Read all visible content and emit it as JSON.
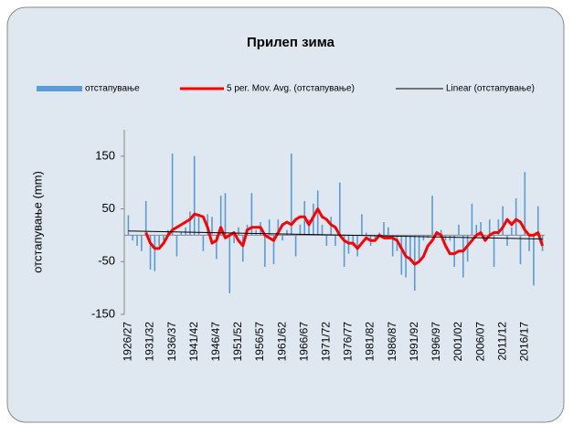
{
  "chart_data": {
    "type": "bar",
    "title": "Прилеп зима",
    "y_label": "отстапување (mm)",
    "categories": [
      "1926/27",
      null,
      null,
      null,
      null,
      "1931/32",
      null,
      null,
      null,
      null,
      "1936/37",
      null,
      null,
      null,
      null,
      "1941/42",
      null,
      null,
      null,
      null,
      "1946/47",
      null,
      null,
      null,
      null,
      "1951/52",
      null,
      null,
      null,
      null,
      "1956/57",
      null,
      null,
      null,
      null,
      "1961/62",
      null,
      null,
      null,
      null,
      "1966/67",
      null,
      null,
      null,
      null,
      "1971/72",
      null,
      null,
      null,
      null,
      "1976/77",
      null,
      null,
      null,
      null,
      "1981/82",
      null,
      null,
      null,
      null,
      "1986/87",
      null,
      null,
      null,
      null,
      "1991/92",
      null,
      null,
      null,
      null,
      "1996/97",
      null,
      null,
      null,
      null,
      "2001/02",
      null,
      null,
      null,
      null,
      "2006/07",
      null,
      null,
      null,
      null,
      "2011/12",
      null,
      null,
      null,
      null,
      "2016/17",
      null,
      null,
      null,
      null
    ],
    "series": [
      {
        "name": "отстапување",
        "type": "bar",
        "color": "#5b9bd5",
        "values": [
          38,
          -10,
          -20,
          -30,
          65,
          -65,
          -68,
          -20,
          -10,
          10,
          155,
          -40,
          5,
          15,
          45,
          150,
          35,
          -30,
          40,
          35,
          -45,
          75,
          80,
          -110,
          -15,
          15,
          -50,
          20,
          80,
          10,
          25,
          -60,
          30,
          -55,
          30,
          -10,
          10,
          155,
          -40,
          20,
          65,
          30,
          60,
          85,
          20,
          -20,
          35,
          -20,
          100,
          -60,
          -35,
          -20,
          -40,
          40,
          5,
          -20,
          -10,
          5,
          25,
          15,
          -40,
          -30,
          -75,
          -80,
          -50,
          -105,
          -50,
          -10,
          -5,
          75,
          5,
          10,
          -10,
          -10,
          -60,
          20,
          -80,
          -50,
          60,
          20,
          25,
          -10,
          30,
          -60,
          30,
          55,
          -20,
          15,
          70,
          -55,
          120,
          -30,
          -95,
          55,
          -30
        ]
      },
      {
        "name": "5 per. Mov. Avg. (отстапување)",
        "type": "line",
        "color": "#ff0000",
        "values": [
          null,
          null,
          null,
          null,
          5,
          -15,
          -25,
          -25,
          -15,
          0,
          10,
          15,
          20,
          25,
          30,
          40,
          38,
          35,
          15,
          -15,
          -10,
          15,
          -5,
          0,
          5,
          -10,
          -20,
          10,
          15,
          15,
          15,
          0,
          -5,
          -10,
          5,
          20,
          25,
          20,
          30,
          35,
          35,
          20,
          35,
          50,
          35,
          30,
          20,
          15,
          0,
          -10,
          -15,
          -15,
          -25,
          -15,
          -5,
          -10,
          -10,
          0,
          -5,
          -5,
          -5,
          -10,
          -25,
          -40,
          -45,
          -55,
          -50,
          -40,
          -20,
          -10,
          5,
          0,
          -20,
          -35,
          -35,
          -30,
          -30,
          -20,
          -10,
          0,
          5,
          -10,
          0,
          5,
          5,
          15,
          30,
          20,
          30,
          25,
          10,
          0,
          0,
          5,
          -20
        ]
      }
    ],
    "trend": {
      "name": "Linear (отстапување)",
      "color": "#000000",
      "values": [
        8,
        -7
      ]
    },
    "ylim": [
      -150,
      200
    ],
    "yticks": [
      -150,
      -50,
      50,
      150
    ]
  }
}
